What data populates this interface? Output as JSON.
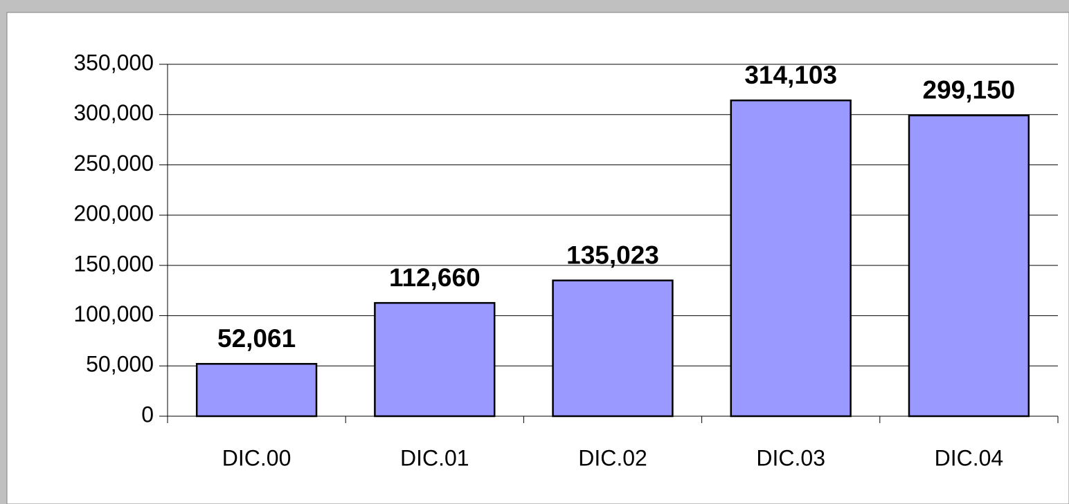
{
  "chart_data": {
    "type": "bar",
    "categories": [
      "DIC.00",
      "DIC.01",
      "DIC.02",
      "DIC.03",
      "DIC.04"
    ],
    "values": [
      52061,
      112660,
      135023,
      314103,
      299150
    ],
    "value_labels": [
      "52,061",
      "112,660",
      "135,023",
      "314,103",
      "299,150"
    ],
    "color": "#9999ff",
    "ylim": [
      0,
      350000
    ],
    "yticks": [
      0,
      {
        "value": 50000,
        "label": "50,000"
      },
      {
        "value": 100000,
        "label": "100,000"
      },
      {
        "value": 150000,
        "label": "150,000"
      },
      {
        "value": 200000,
        "label": "200,000"
      },
      {
        "value": 250000,
        "label": "250,000"
      },
      {
        "value": 300000,
        "label": "300,000"
      },
      {
        "value": 350000,
        "label": "350,000"
      }
    ],
    "grid": true
  }
}
